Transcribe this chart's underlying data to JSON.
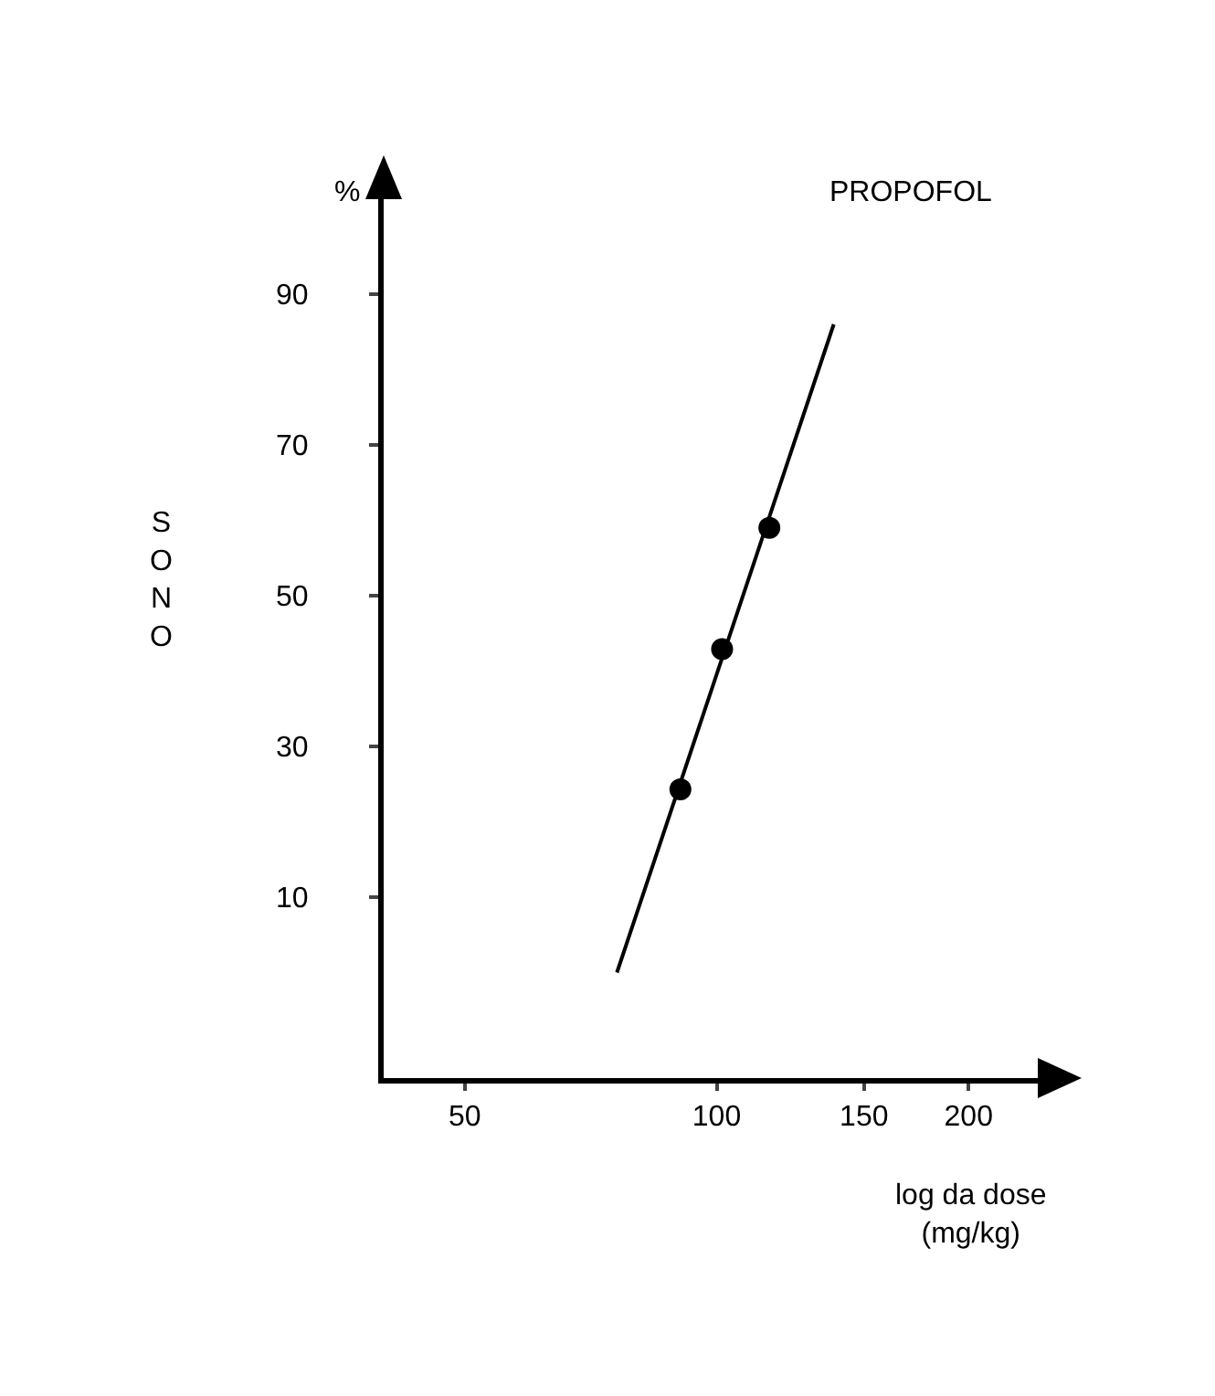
{
  "chart_data": {
    "type": "scatter",
    "title": "PROPOFOL",
    "xlabel": "log da dose (mg/kg)",
    "ylabel": "SONO",
    "annotations": [
      "%"
    ],
    "log": "x",
    "xlim": [
      40,
      257
    ],
    "xticks": [
      50,
      100,
      150,
      200
    ],
    "ylim": [
      -14,
      106
    ],
    "yticks": [
      10,
      30,
      50,
      70,
      90
    ],
    "grid": false,
    "marker": "circle",
    "series": [
      {
        "color": "#000000",
        "x": [
          90.5,
          101.5,
          115.6
        ],
        "values": [
          24.3,
          42.9,
          59
        ]
      },
      {
        "type": "line",
        "color": "#000000",
        "x": [
          76,
          138
        ],
        "values": [
          0,
          86
        ],
        "marker": "none",
        "line_style": "solid"
      }
    ]
  }
}
